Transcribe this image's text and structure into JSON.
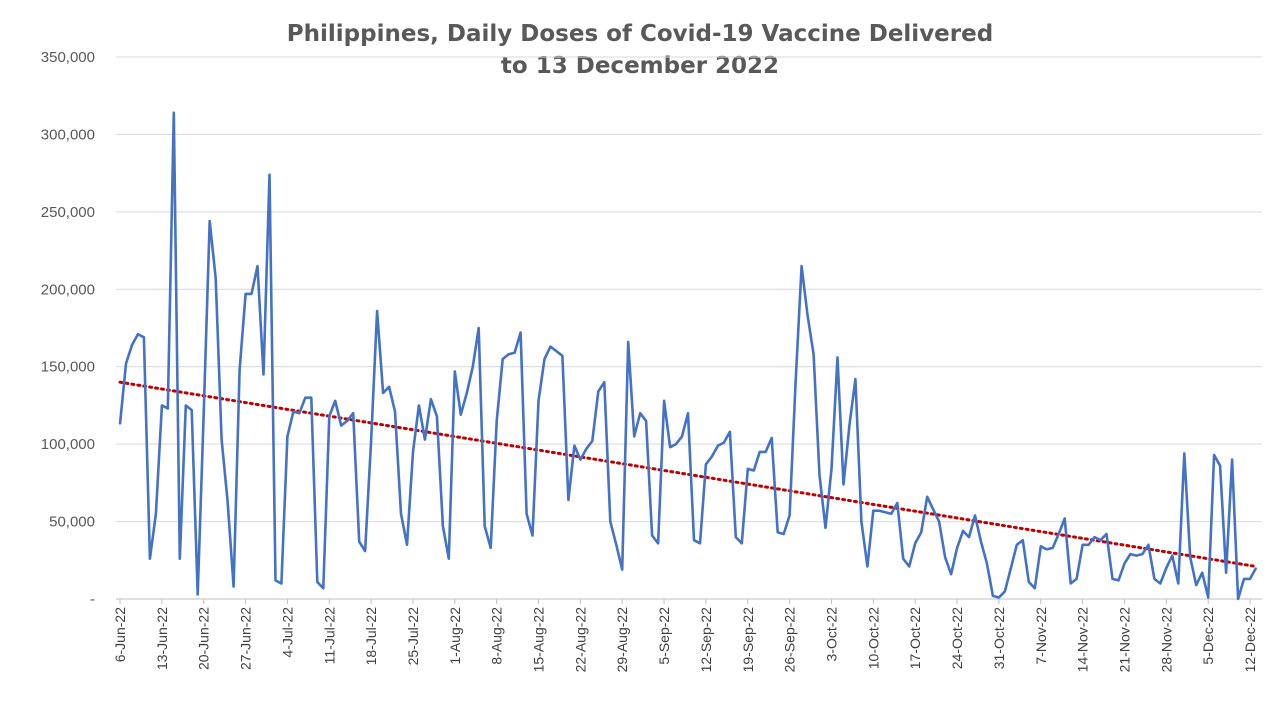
{
  "chart_data": {
    "type": "line",
    "title_line1": "Philippines, Daily Doses of Covid-19 Vaccine Delivered",
    "title_line2": "to 13 December 2022",
    "xlabel": "",
    "ylabel": "",
    "ylim": [
      0,
      350000
    ],
    "y_ticks": [
      0,
      50000,
      100000,
      150000,
      200000,
      250000,
      300000,
      350000
    ],
    "y_tick_labels": [
      "-",
      "50,000",
      "100,000",
      "150,000",
      "200,000",
      "250,000",
      "300,000",
      "350,000"
    ],
    "x_start": "6-Jun-22",
    "x_tick_labels": [
      "6-Jun-22",
      "13-Jun-22",
      "20-Jun-22",
      "27-Jun-22",
      "4-Jul-22",
      "11-Jul-22",
      "18-Jul-22",
      "25-Jul-22",
      "1-Aug-22",
      "8-Aug-22",
      "15-Aug-22",
      "22-Aug-22",
      "29-Aug-22",
      "5-Sep-22",
      "12-Sep-22",
      "19-Sep-22",
      "26-Sep-22",
      "3-Oct-22",
      "10-Oct-22",
      "17-Oct-22",
      "24-Oct-22",
      "31-Oct-22",
      "7-Nov-22",
      "14-Nov-22",
      "21-Nov-22",
      "28-Nov-22",
      "5-Dec-22",
      "12-Dec-22"
    ],
    "grid": true,
    "legend": "none",
    "series": [
      {
        "color": "#4472c4",
        "values": [
          113000,
          152000,
          164000,
          171000,
          169000,
          26000,
          55000,
          125000,
          123000,
          314000,
          26000,
          125000,
          122000,
          3000,
          120000,
          244000,
          207000,
          103000,
          63000,
          8000,
          148000,
          197000,
          197000,
          215000,
          145000,
          274000,
          12000,
          10000,
          105000,
          121000,
          120000,
          130000,
          130000,
          11000,
          7000,
          118000,
          128000,
          112000,
          115000,
          120000,
          37000,
          31000,
          102000,
          186000,
          133000,
          137000,
          121000,
          55000,
          35000,
          95000,
          125000,
          103000,
          129000,
          118000,
          47000,
          26000,
          147000,
          119000,
          133000,
          150000,
          175000,
          47000,
          33000,
          115000,
          155000,
          158000,
          159000,
          172000,
          55000,
          41000,
          128000,
          155000,
          163000,
          160000,
          157000,
          64000,
          99000,
          90000,
          97000,
          102000,
          134000,
          140000,
          50000,
          35000,
          19000,
          166000,
          105000,
          120000,
          115000,
          41000,
          36000,
          128000,
          98000,
          100000,
          105000,
          120000,
          38000,
          36000,
          87000,
          92000,
          99000,
          101000,
          108000,
          40000,
          36000,
          84000,
          83000,
          95000,
          95000,
          104000,
          43000,
          42000,
          54000,
          140000,
          215000,
          183000,
          158000,
          80000,
          46000,
          84000,
          156000,
          74000,
          112000,
          142000,
          50000,
          21000,
          57000,
          57000,
          56000,
          55000,
          62000,
          26000,
          21000,
          36000,
          43000,
          66000,
          58000,
          50000,
          27000,
          16000,
          33000,
          44000,
          40000,
          54000,
          37000,
          23000,
          2000,
          1000,
          5000,
          20000,
          35000,
          38000,
          11000,
          7000,
          34000,
          32000,
          33000,
          42000,
          52000,
          10000,
          13000,
          35000,
          35000,
          40000,
          38000,
          42000,
          13000,
          12000,
          23000,
          29000,
          28000,
          29000,
          35000,
          13000,
          10000,
          20000,
          28000,
          10000,
          94000,
          27000,
          9000,
          17000,
          1000,
          93000,
          86000,
          17000,
          90000,
          0,
          13000,
          13000,
          20000
        ]
      }
    ],
    "trendline": {
      "type": "linear",
      "color": "#c00000",
      "start": 140000,
      "end": 21000
    }
  }
}
